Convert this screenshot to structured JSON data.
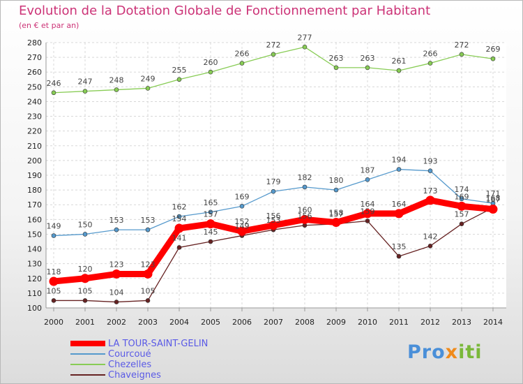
{
  "title": "Evolution de la Dotation Globale de Fonctionnement par Habitant",
  "subtitle": "(en € et par an)",
  "logo": "Proxiti",
  "colors": {
    "title": "#cc3377",
    "legend_text": "#5a5ae6",
    "tour": "#ff0000",
    "courcoue": "#5599cc",
    "chezelles": "#88cc55",
    "chaveignes": "#662222"
  },
  "chart_data": {
    "type": "line",
    "title": "Evolution de la Dotation Globale de Fonctionnement par Habitant",
    "subtitle": "(en € et par an)",
    "xlabel": "",
    "ylabel": "",
    "x": [
      "2000",
      "2001",
      "2002",
      "2003",
      "2004",
      "2005",
      "2006",
      "2007",
      "2008",
      "2009",
      "2010",
      "2011",
      "2012",
      "2013",
      "2014"
    ],
    "ylim": [
      100,
      280
    ],
    "yticks": [
      100,
      110,
      120,
      130,
      140,
      150,
      160,
      170,
      180,
      190,
      200,
      210,
      220,
      230,
      240,
      250,
      260,
      270,
      280
    ],
    "grid": true,
    "legend_position": "bottom-left",
    "series": [
      {
        "name": "LA TOUR-SAINT-GELIN",
        "color": "#ff0000",
        "values": [
          118,
          120,
          123,
          123,
          154,
          157,
          152,
          156,
          160,
          158,
          164,
          164,
          173,
          169,
          167
        ]
      },
      {
        "name": "Courcoué",
        "color": "#5599cc",
        "values": [
          149,
          150,
          153,
          153,
          162,
          165,
          169,
          179,
          182,
          180,
          187,
          194,
          193,
          174,
          171
        ]
      },
      {
        "name": "Chezelles",
        "color": "#88cc55",
        "values": [
          246,
          247,
          248,
          249,
          255,
          260,
          266,
          272,
          277,
          263,
          263,
          261,
          266,
          272,
          269
        ]
      },
      {
        "name": "Chaveignes",
        "color": "#662222",
        "values": [
          105,
          105,
          104,
          105,
          141,
          145,
          149,
          153,
          156,
          157,
          159,
          135,
          142,
          157,
          168
        ]
      }
    ]
  }
}
